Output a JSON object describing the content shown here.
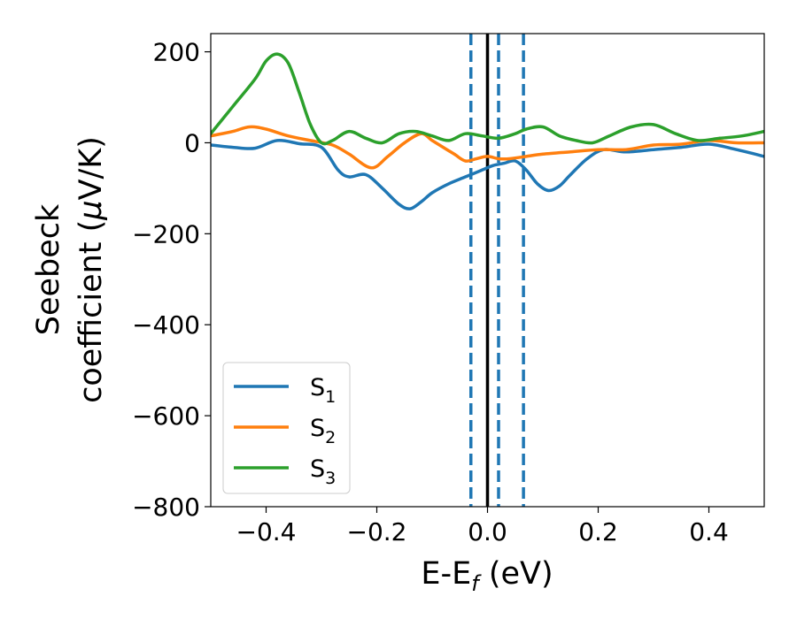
{
  "chart_data": {
    "type": "line",
    "title": "",
    "xlabel": {
      "main": "E-E",
      "sub": "f",
      "after": " (eV)"
    },
    "ylabel": {
      "line1": "Seebeck",
      "line2_pre": "coefficient  (",
      "line2_mu": "μ",
      "line2_post": "V/K)"
    },
    "xlim": [
      -0.5,
      0.5
    ],
    "ylim": [
      -800,
      240
    ],
    "xticks": [
      {
        "value": -0.4,
        "label": "−0.4"
      },
      {
        "value": -0.2,
        "label": "−0.2"
      },
      {
        "value": 0.0,
        "label": "0.0"
      },
      {
        "value": 0.2,
        "label": "0.2"
      },
      {
        "value": 0.4,
        "label": "0.4"
      }
    ],
    "yticks": [
      {
        "value": 200,
        "label": "200"
      },
      {
        "value": 0,
        "label": "0"
      },
      {
        "value": -200,
        "label": "−200"
      },
      {
        "value": -400,
        "label": "−400"
      },
      {
        "value": -600,
        "label": "−600"
      },
      {
        "value": -800,
        "label": "−800"
      }
    ],
    "grid": false,
    "legend_position": "lower-left",
    "series": [
      {
        "name": "S",
        "sub": "1",
        "color": "#1f77b4",
        "x": [
          -0.5,
          -0.46,
          -0.42,
          -0.38,
          -0.34,
          -0.3,
          -0.27,
          -0.25,
          -0.22,
          -0.19,
          -0.16,
          -0.14,
          -0.12,
          -0.1,
          -0.07,
          -0.04,
          -0.01,
          0.01,
          0.03,
          0.05,
          0.07,
          0.09,
          0.11,
          0.13,
          0.15,
          0.18,
          0.21,
          0.25,
          0.3,
          0.35,
          0.4,
          0.45,
          0.5
        ],
        "y": [
          -5,
          -10,
          -12,
          5,
          -2,
          -10,
          -60,
          -75,
          -70,
          -100,
          -135,
          -145,
          -130,
          -110,
          -90,
          -75,
          -60,
          -50,
          -45,
          -40,
          -60,
          -90,
          -105,
          -95,
          -70,
          -35,
          -15,
          -20,
          -15,
          -10,
          -3,
          -15,
          -30
        ]
      },
      {
        "name": "S",
        "sub": "2",
        "color": "#ff7f0e",
        "x": [
          -0.5,
          -0.46,
          -0.43,
          -0.4,
          -0.36,
          -0.32,
          -0.28,
          -0.25,
          -0.21,
          -0.18,
          -0.15,
          -0.12,
          -0.1,
          -0.08,
          -0.06,
          -0.04,
          -0.02,
          0.0,
          0.02,
          0.04,
          0.07,
          0.1,
          0.15,
          0.2,
          0.25,
          0.3,
          0.35,
          0.4,
          0.45,
          0.5
        ],
        "y": [
          15,
          25,
          35,
          30,
          15,
          5,
          -5,
          -25,
          -55,
          -30,
          0,
          20,
          5,
          -10,
          -25,
          -40,
          -35,
          -30,
          -35,
          -35,
          -30,
          -25,
          -20,
          -15,
          -15,
          -5,
          -3,
          5,
          0,
          0
        ]
      },
      {
        "name": "S",
        "sub": "3",
        "color": "#2ca02c",
        "x": [
          -0.5,
          -0.46,
          -0.42,
          -0.4,
          -0.38,
          -0.36,
          -0.34,
          -0.32,
          -0.3,
          -0.28,
          -0.25,
          -0.22,
          -0.19,
          -0.16,
          -0.13,
          -0.1,
          -0.07,
          -0.04,
          -0.01,
          0.02,
          0.05,
          0.07,
          0.1,
          0.13,
          0.16,
          0.19,
          0.22,
          0.26,
          0.3,
          0.34,
          0.38,
          0.42,
          0.46,
          0.5
        ],
        "y": [
          20,
          80,
          140,
          180,
          195,
          175,
          110,
          40,
          0,
          5,
          25,
          10,
          0,
          20,
          25,
          15,
          5,
          20,
          15,
          10,
          20,
          30,
          35,
          15,
          5,
          0,
          15,
          35,
          40,
          20,
          5,
          10,
          15,
          25
        ]
      }
    ],
    "vlines": [
      {
        "x": -0.03,
        "style": "dashed",
        "color": "#1f77b4"
      },
      {
        "x": 0.02,
        "style": "dashed",
        "color": "#1f77b4"
      },
      {
        "x": 0.065,
        "style": "dashed",
        "color": "#1f77b4"
      },
      {
        "x": 0.0,
        "style": "solid",
        "color": "#000000"
      }
    ]
  }
}
